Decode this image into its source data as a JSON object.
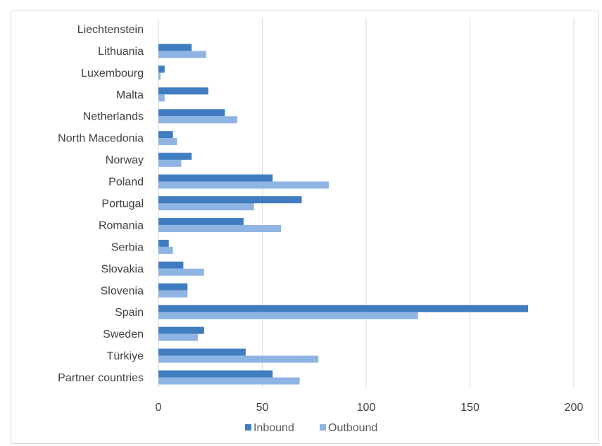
{
  "chart_data": {
    "type": "bar",
    "orientation": "horizontal",
    "title": "",
    "xlabel": "",
    "ylabel": "",
    "xlim": [
      0,
      200
    ],
    "x_ticks": [
      0,
      50,
      100,
      150,
      200
    ],
    "grid": "vertical",
    "legend_position": "bottom",
    "categories": [
      "Liechtenstein",
      "Lithuania",
      "Luxembourg",
      "Malta",
      "Netherlands",
      "North Macedonia",
      "Norway",
      "Poland",
      "Portugal",
      "Romania",
      "Serbia",
      "Slovakia",
      "Slovenia",
      "Spain",
      "Sweden",
      "Türkiye",
      "Partner countries"
    ],
    "series": [
      {
        "name": "Inbound",
        "color": "#3f7cc0",
        "values": [
          0,
          16,
          3,
          24,
          32,
          7,
          16,
          55,
          69,
          41,
          5,
          12,
          14,
          178,
          22,
          42,
          55
        ]
      },
      {
        "name": "Outbound",
        "color": "#8eb4e3",
        "values": [
          0,
          23,
          1,
          3,
          38,
          9,
          11,
          82,
          46,
          59,
          7,
          22,
          14,
          125,
          19,
          77,
          68
        ]
      }
    ]
  }
}
